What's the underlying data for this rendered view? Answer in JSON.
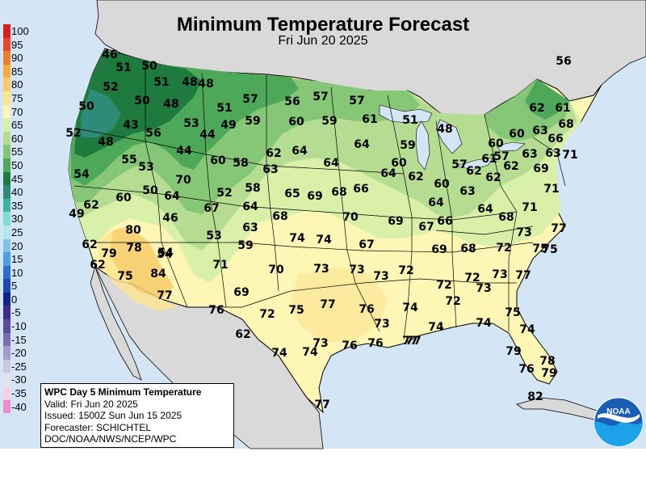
{
  "title": "Minimum Temperature Forecast",
  "subtitle": "Fri Jun 20 2025",
  "scale": [
    {
      "label": "100",
      "color": "#d91f1f"
    },
    {
      "label": "95",
      "color": "#e8462c"
    },
    {
      "label": "90",
      "color": "#f07c2c"
    },
    {
      "label": "85",
      "color": "#f6ab3c"
    },
    {
      "label": "80",
      "color": "#f8cb6b"
    },
    {
      "label": "75",
      "color": "#fbe590"
    },
    {
      "label": "70",
      "color": "#fdf6b4"
    },
    {
      "label": "65",
      "color": "#d9f0a8"
    },
    {
      "label": "60",
      "color": "#b4dd92"
    },
    {
      "label": "55",
      "color": "#86c677"
    },
    {
      "label": "50",
      "color": "#4ea85a"
    },
    {
      "label": "45",
      "color": "#1f7a3e"
    },
    {
      "label": "40",
      "color": "#2e8b78"
    },
    {
      "label": "35",
      "color": "#3fb3a8"
    },
    {
      "label": "30",
      "color": "#7fdcd2"
    },
    {
      "label": "25",
      "color": "#b3e6ee"
    },
    {
      "label": "20",
      "color": "#7fc3ea"
    },
    {
      "label": "15",
      "color": "#4f9fe0"
    },
    {
      "label": "10",
      "color": "#2a6fd0"
    },
    {
      "label": "5",
      "color": "#1c46b3"
    },
    {
      "label": "0",
      "color": "#14238a"
    },
    {
      "label": "-5",
      "color": "#3a2b8c"
    },
    {
      "label": "-10",
      "color": "#5e4a9c"
    },
    {
      "label": "-15",
      "color": "#7f6cb0"
    },
    {
      "label": "-20",
      "color": "#a79ac6"
    },
    {
      "label": "-25",
      "color": "#cfc6de"
    },
    {
      "label": "-30",
      "color": "#e6e0ec"
    },
    {
      "label": "-35",
      "color": "#f7cfe6"
    },
    {
      "label": "-40",
      "color": "#f08ad2"
    }
  ],
  "info": {
    "heading": "WPC Day 5 Minimum Temperature",
    "valid": "Valid: Fri Jun 20 2025",
    "issued": "Issued: 1500Z Sun Jun 15 2025",
    "forecaster": "Forecaster: SCHICHTEL",
    "agency": "DOC/NOAA/NWS/NCEP/WPC"
  },
  "logo_text": "NOAA",
  "colors": {
    "water": "#d4e6f5",
    "land_outside": "#d9d9d9",
    "boundary": "#000000"
  },
  "temps": [
    "46",
    "51",
    "50",
    "51",
    "48",
    "48",
    "52",
    "50",
    "48",
    "50",
    "43",
    "57",
    "51",
    "57",
    "56",
    "57",
    "53",
    "49",
    "59",
    "60",
    "59",
    "61",
    "51",
    "48",
    "52",
    "56",
    "48",
    "44",
    "44",
    "55",
    "53",
    "54",
    "60",
    "58",
    "62",
    "64",
    "64",
    "64",
    "59",
    "60",
    "57",
    "60",
    "62",
    "60",
    "57",
    "63",
    "61",
    "61",
    "63",
    "63",
    "71",
    "66",
    "68",
    "70",
    "52",
    "56",
    "50",
    "58",
    "63",
    "62",
    "60",
    "65",
    "69",
    "68",
    "66",
    "64",
    "60",
    "62",
    "62",
    "63",
    "62",
    "69",
    "71",
    "62",
    "64",
    "54",
    "67",
    "49",
    "64",
    "64",
    "68",
    "70",
    "69",
    "66",
    "67",
    "64",
    "71",
    "68",
    "77",
    "80",
    "63",
    "46",
    "53",
    "59",
    "74",
    "74",
    "67",
    "69",
    "68",
    "72",
    "73",
    "62",
    "79",
    "78",
    "54",
    "75",
    "62",
    "71",
    "70",
    "73",
    "73",
    "73",
    "72",
    "72",
    "72",
    "73",
    "73",
    "77",
    "75",
    "84",
    "77",
    "69",
    "76",
    "72",
    "75",
    "77",
    "76",
    "74",
    "72",
    "75",
    "73",
    "74",
    "77",
    "74",
    "75",
    "74",
    "62",
    "74",
    "74",
    "73",
    "76",
    "76",
    "77",
    "79",
    "78",
    "79",
    "76",
    "77",
    "82"
  ]
}
